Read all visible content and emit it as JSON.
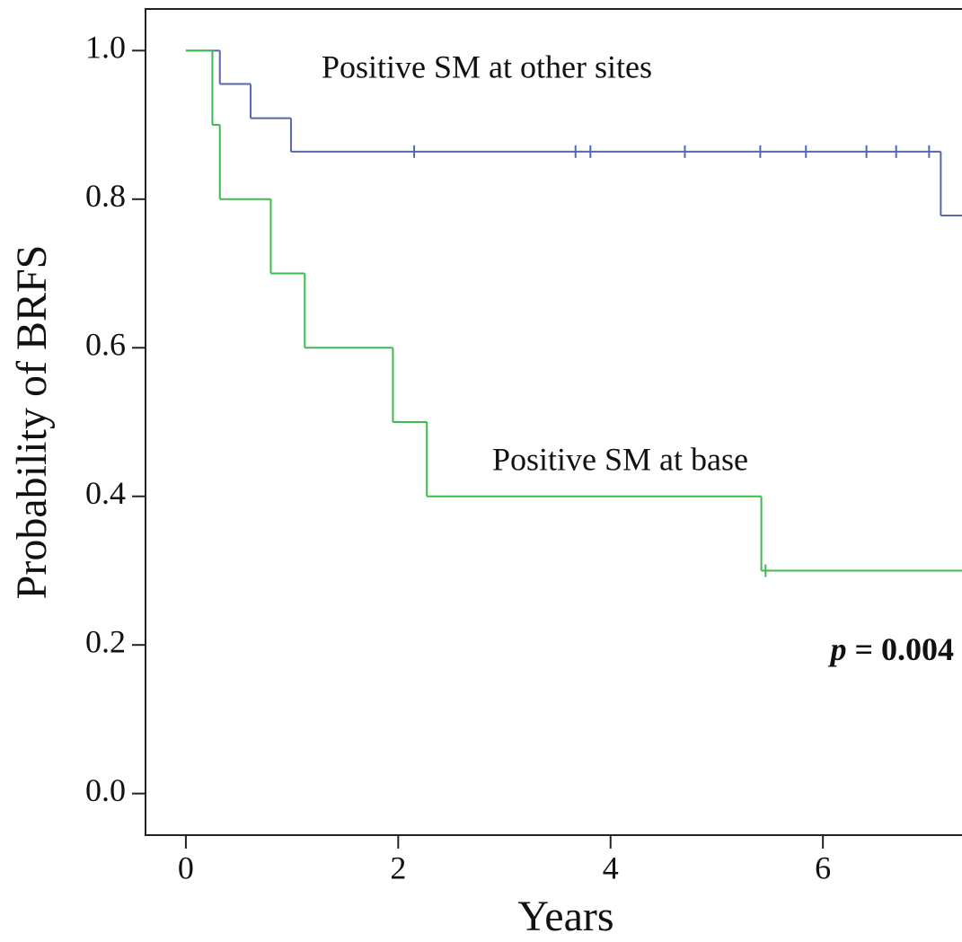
{
  "chart_data": {
    "type": "km",
    "xlabel": "Years",
    "ylabel": "Probability of BRFS",
    "xlim": [
      -0.38,
      7.31
    ],
    "ylim": [
      -0.056,
      1.056
    ],
    "xticks": [
      0,
      2,
      4,
      6
    ],
    "yticks": [
      {
        "value": 0,
        "label": "0.0"
      },
      {
        "value": 0.2,
        "label": "0.2"
      },
      {
        "value": 0.4,
        "label": "0.4"
      },
      {
        "value": 0.6,
        "label": "0.6"
      },
      {
        "value": 0.8,
        "label": "0.8"
      },
      {
        "value": 1,
        "label": "1.0"
      }
    ],
    "series": [
      {
        "name": "Positive SM at other sites",
        "color": "#5566b3",
        "x": [
          0,
          0.32,
          0.61,
          0.99,
          7.11
        ],
        "values": [
          1,
          0.955,
          0.909,
          0.864,
          0.778
        ],
        "censored": {
          "x": [
            2.15,
            3.67,
            3.81,
            4.7,
            5.41,
            5.84,
            6.41,
            6.69,
            7.0
          ],
          "values": [
            0.864,
            0.864,
            0.864,
            0.864,
            0.864,
            0.864,
            0.864,
            0.864,
            0.864
          ]
        }
      },
      {
        "name": "Positive SM at base",
        "color": "#3dba4e",
        "x": [
          0,
          0.25,
          0.32,
          0.8,
          1.12,
          1.95,
          2.27,
          5.42
        ],
        "values": [
          1,
          0.9,
          0.8,
          0.7,
          0.6,
          0.5,
          0.4,
          0.3
        ],
        "censored": {
          "x": [
            5.46
          ],
          "values": [
            0.3
          ]
        }
      }
    ],
    "p_symbol": "p",
    "p_text": "= 0.004"
  }
}
